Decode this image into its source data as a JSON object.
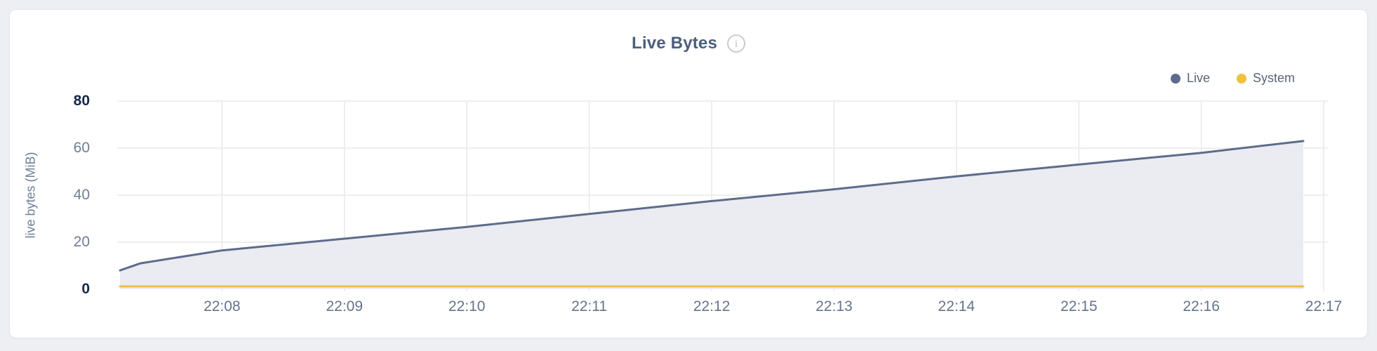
{
  "header": {
    "title": "Live Bytes"
  },
  "legend": {
    "items": [
      {
        "label": "Live",
        "color": "#5d6c8b"
      },
      {
        "label": "System",
        "color": "#eec23f"
      }
    ]
  },
  "chart_data": {
    "type": "area",
    "title": "Live Bytes",
    "xlabel": "",
    "ylabel": "live bytes (MiB)",
    "ylim": [
      0,
      80
    ],
    "y_ticks": [
      0,
      20,
      40,
      60,
      80
    ],
    "y_ticks_bold": [
      0,
      80
    ],
    "grid": true,
    "legend_position": "top-right",
    "x_ticks": [
      {
        "seconds": 60,
        "label": "22:08"
      },
      {
        "seconds": 120,
        "label": "22:09"
      },
      {
        "seconds": 180,
        "label": "22:10"
      },
      {
        "seconds": 240,
        "label": "22:11"
      },
      {
        "seconds": 300,
        "label": "22:12"
      },
      {
        "seconds": 360,
        "label": "22:13"
      },
      {
        "seconds": 420,
        "label": "22:14"
      },
      {
        "seconds": 480,
        "label": "22:15"
      },
      {
        "seconds": 540,
        "label": "22:16"
      },
      {
        "seconds": 600,
        "label": "22:17"
      }
    ],
    "x_domain_seconds": [
      10,
      590
    ],
    "series": [
      {
        "name": "Live",
        "color": "#5d6c8b",
        "fill": "#eaecf2",
        "x_seconds": [
          10,
          20,
          60,
          120,
          180,
          240,
          300,
          360,
          420,
          480,
          540,
          590
        ],
        "values": [
          8,
          11,
          16.5,
          21.5,
          26.5,
          32,
          37.5,
          42.5,
          48,
          53,
          58,
          63
        ]
      },
      {
        "name": "System",
        "color": "#eec23f",
        "fill": null,
        "x_seconds": [
          10,
          590
        ],
        "values": [
          1.2,
          1.2
        ]
      }
    ]
  }
}
